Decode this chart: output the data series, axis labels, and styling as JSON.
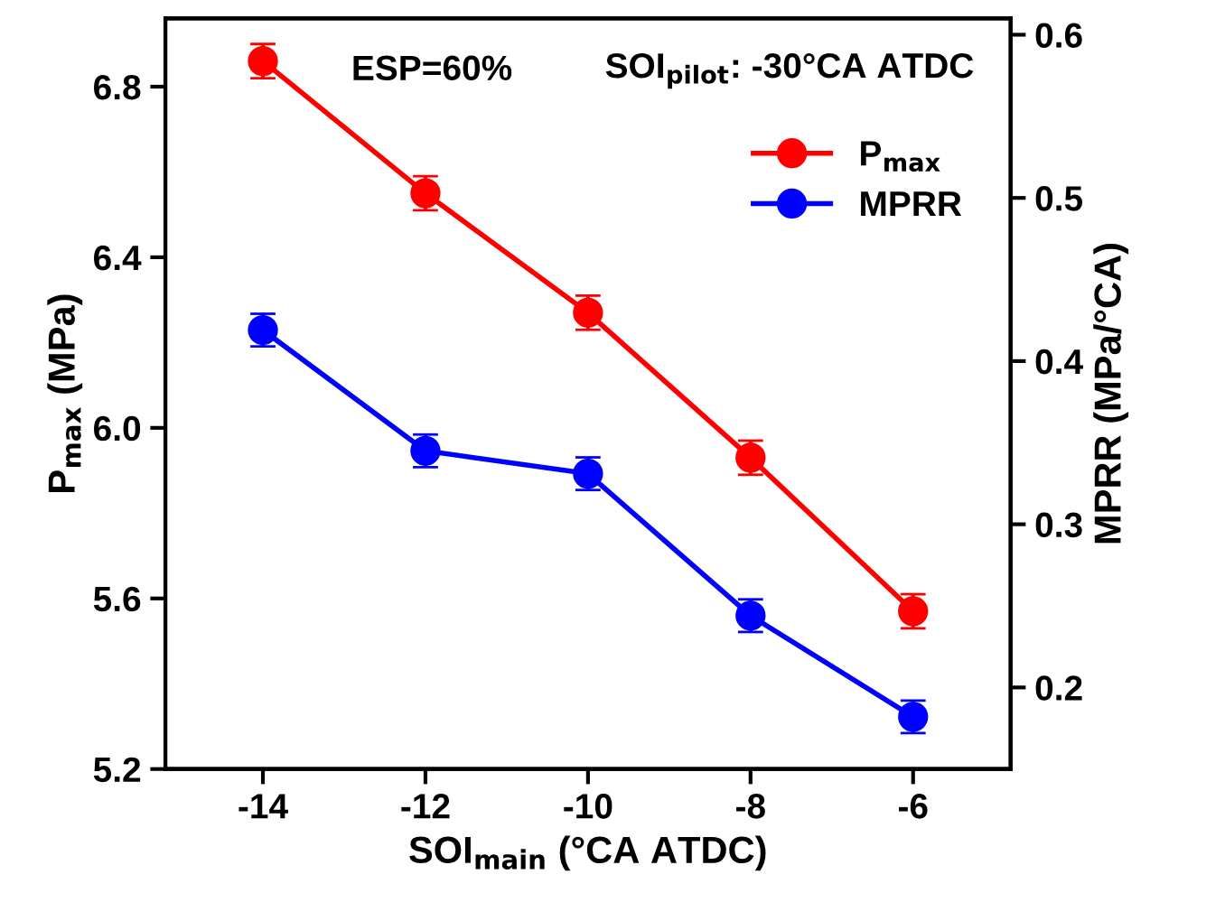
{
  "chart_data": {
    "type": "line",
    "xlabel": "SOI$_{main}$ (°CA ATDC)",
    "ylabel": "P$_{max}$ (MPa)",
    "y2label": "MPRR (MPa/°CA)",
    "x": [
      -14,
      -12,
      -10,
      -8,
      -6
    ],
    "series": [
      {
        "name": "P$_{max}$",
        "color": "#ff0000",
        "values": [
          6.86,
          6.55,
          6.27,
          5.93,
          5.57
        ],
        "errors": [
          0.04,
          0.04,
          0.04,
          0.04,
          0.04
        ]
      },
      {
        "name": "MPRR",
        "color": "#0000ff",
        "axis": "y2",
        "values": [
          0.419,
          0.345,
          0.331,
          0.244,
          0.182
        ],
        "errors": [
          0.01,
          0.01,
          0.01,
          0.01,
          0.01
        ]
      }
    ],
    "xlim": [
      -15.2,
      -4.8
    ],
    "xticks": [
      -14,
      -12,
      -10,
      -8,
      -6
    ],
    "ylim": [
      5.2,
      6.96
    ],
    "yticks": [
      5.2,
      5.6,
      {
        "value": 6,
        "label": "6.0"
      },
      6.4,
      6.8
    ],
    "y2lim": [
      0.15,
      0.61
    ],
    "y2ticks": [
      0.2,
      0.3,
      0.4,
      0.5,
      0.6
    ],
    "annotations": [
      "ESP=60%",
      "SOI$_{pilot}$: -30°CA ATDC"
    ],
    "legend": "top right",
    "marker": "circle",
    "line_style": "solid",
    "grid": false
  }
}
